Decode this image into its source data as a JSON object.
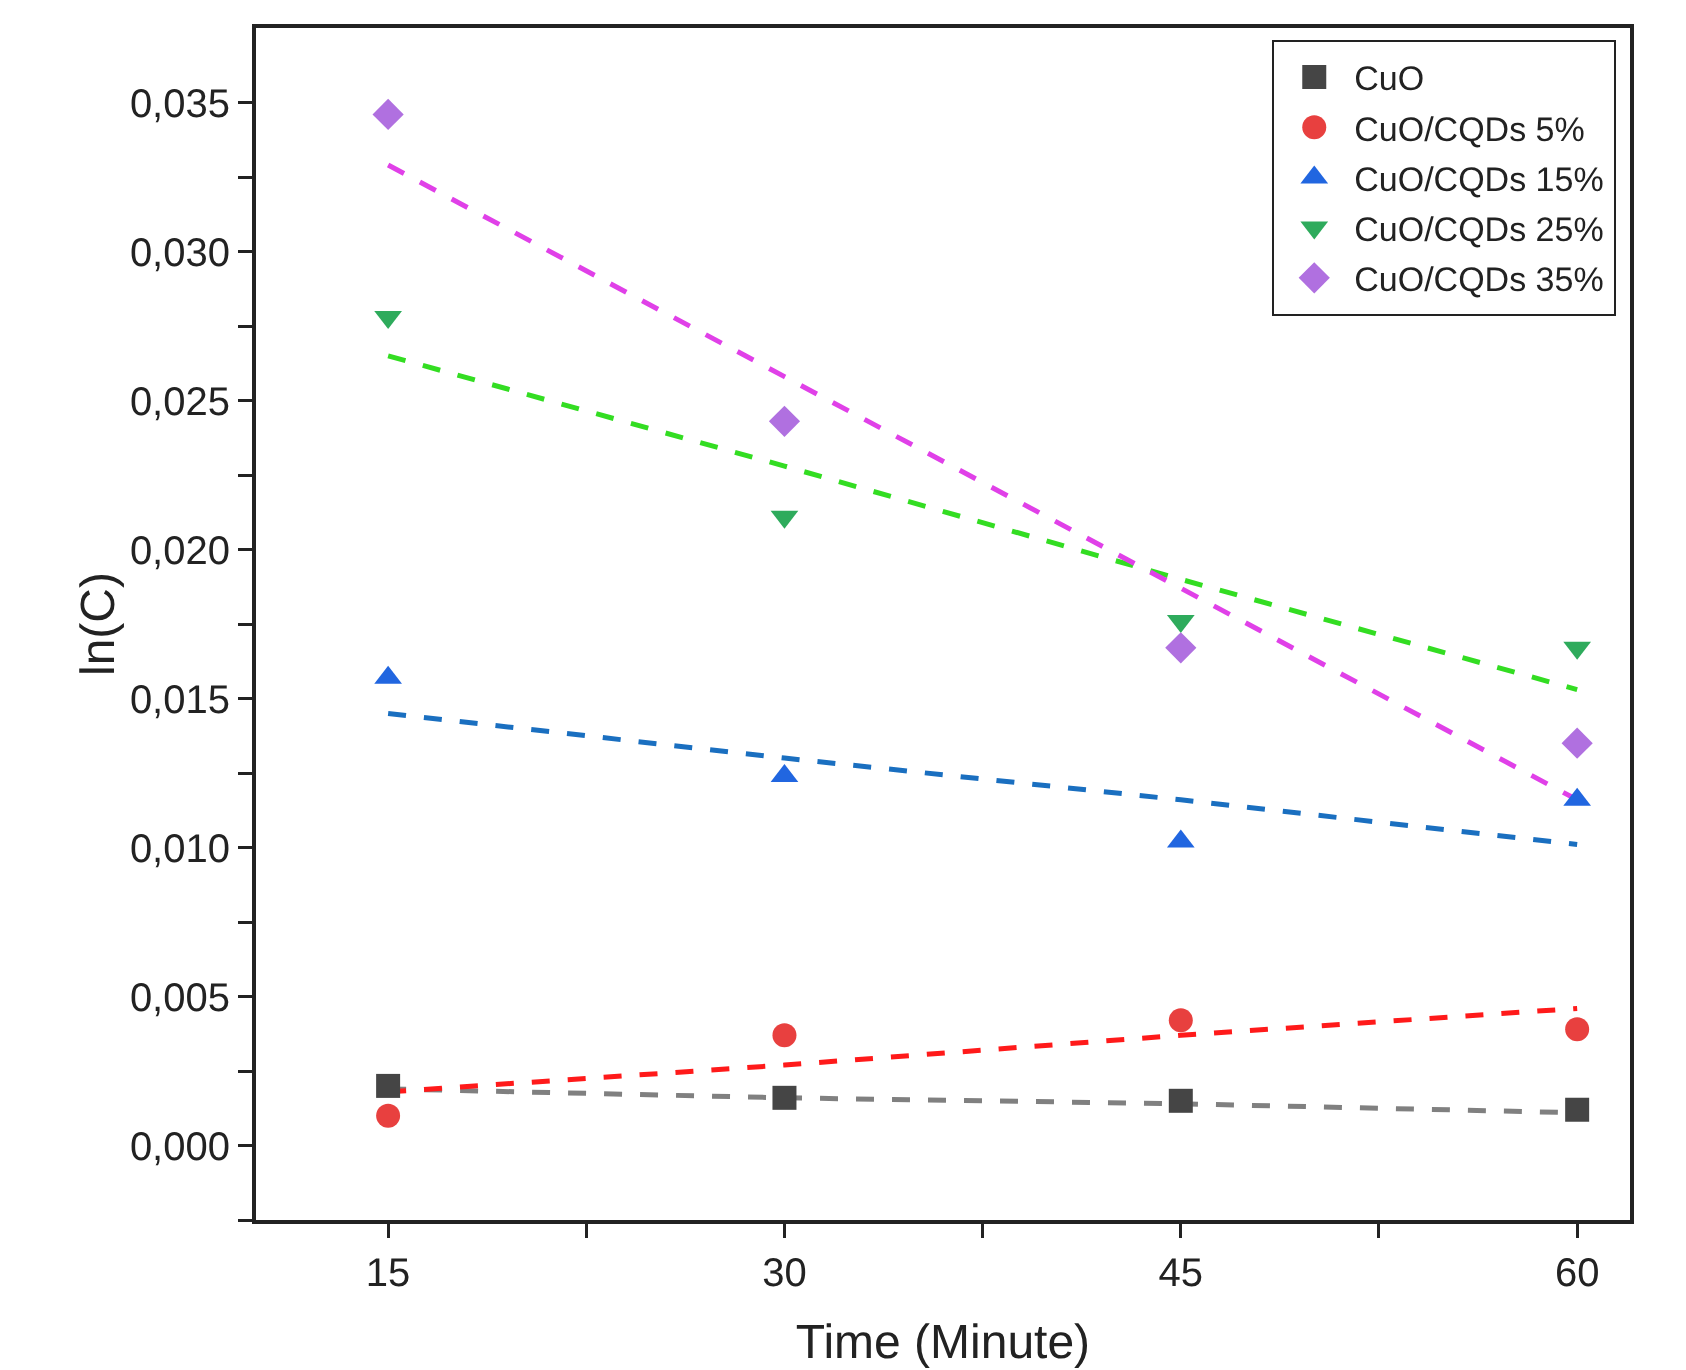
{
  "chart_data": {
    "type": "scatter",
    "xlabel": "Time (Minute)",
    "ylabel": "ln(C)",
    "x": [
      15,
      30,
      45,
      60
    ],
    "xlim": [
      10,
      62
    ],
    "xticks": [
      15,
      {
        "value": 22.5,
        "label": null
      },
      30,
      {
        "value": 37.5,
        "label": null
      },
      45,
      {
        "value": 52.5,
        "label": null
      },
      60
    ],
    "ylim": [
      -0.0025,
      0.0375
    ],
    "yticks": [
      {
        "value": -0.0025,
        "label": null
      },
      {
        "value": 0,
        "label": "0,000"
      },
      {
        "value": 0.0025,
        "label": null
      },
      {
        "value": 0.005,
        "label": "0,005"
      },
      {
        "value": 0.0075,
        "label": null
      },
      {
        "value": 0.01,
        "label": "0,010"
      },
      {
        "value": 0.0125,
        "label": null
      },
      {
        "value": 0.015,
        "label": "0,015"
      },
      {
        "value": 0.0175,
        "label": null
      },
      {
        "value": 0.02,
        "label": "0,020"
      },
      {
        "value": 0.0225,
        "label": null
      },
      {
        "value": 0.025,
        "label": "0,025"
      },
      {
        "value": 0.0275,
        "label": null
      },
      {
        "value": 0.03,
        "label": "0,030"
      },
      {
        "value": 0.0325,
        "label": null
      },
      {
        "value": 0.035,
        "label": "0,035"
      }
    ],
    "grid": false,
    "legend": "top right",
    "series": [
      {
        "name": "CuO",
        "color": "#454545",
        "marker": "square",
        "values": [
          0.002,
          0.0016,
          0.0015,
          0.0012
        ]
      },
      {
        "name": "CuO/CQDs 5%",
        "color": "#e8403f",
        "marker": "circle",
        "values": [
          0.001,
          0.0037,
          0.0042,
          0.0039
        ]
      },
      {
        "name": "CuO/CQDs 15%",
        "color": "#2166e0",
        "marker": "triangle",
        "values": [
          0.0157,
          0.0124,
          0.0102,
          0.0116
        ]
      },
      {
        "name": "CuO/CQDs 25%",
        "color": "#2eab5c",
        "marker": "triangle-down",
        "values": [
          0.0278,
          0.0211,
          0.0176,
          0.0167
        ]
      },
      {
        "name": "CuO/CQDs 35%",
        "color": "#b070e0",
        "marker": "diamond",
        "values": [
          0.0346,
          0.0243,
          0.0167,
          0.0135
        ]
      },
      {
        "type": "line",
        "color": "#808080",
        "line_style": "dashed",
        "marker": "none",
        "values": [
          0.0019,
          0.0016,
          0.0014,
          0.0011
        ]
      },
      {
        "type": "line",
        "color": "#ff1a1a",
        "line_style": "dashed",
        "marker": "none",
        "values": [
          0.0018,
          0.0027,
          0.0037,
          0.0046
        ]
      },
      {
        "type": "line",
        "color": "#1a6fc0",
        "line_style": "dashed",
        "marker": "none",
        "values": [
          0.0145,
          0.013,
          0.0116,
          0.0101
        ]
      },
      {
        "type": "line",
        "color": "#33dd22",
        "line_style": "dashed",
        "marker": "none",
        "values": [
          0.0265,
          0.0228,
          0.019,
          0.0153
        ]
      },
      {
        "type": "line",
        "color": "#e040e8",
        "line_style": "dashed",
        "marker": "none",
        "values": [
          0.0329,
          0.0258,
          0.0187,
          0.0116
        ]
      }
    ]
  }
}
